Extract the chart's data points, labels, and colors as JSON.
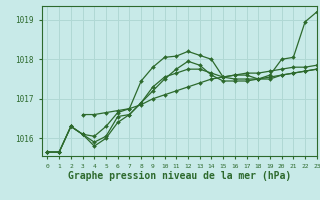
{
  "background_color": "#c8eae8",
  "grid_color": "#b0d8d4",
  "line_color": "#2d6a2d",
  "xlabel": "Graphe pression niveau de la mer (hPa)",
  "xlabel_fontsize": 7,
  "xlim": [
    -0.5,
    23
  ],
  "ylim": [
    1015.55,
    1019.35
  ],
  "yticks": [
    1016,
    1017,
    1018,
    1019
  ],
  "xticks": [
    0,
    1,
    2,
    3,
    4,
    5,
    6,
    7,
    8,
    9,
    10,
    11,
    12,
    13,
    14,
    15,
    16,
    17,
    18,
    19,
    20,
    21,
    22,
    23
  ],
  "lines": [
    {
      "x": [
        0,
        1,
        2,
        3,
        4,
        5,
        6,
        7,
        8,
        9,
        10,
        11,
        12,
        13,
        14,
        15,
        16,
        17,
        18,
        19,
        20,
        21,
        22,
        23
      ],
      "y": [
        1015.65,
        1015.65,
        1016.3,
        1016.1,
        1016.05,
        1016.3,
        1016.65,
        1016.75,
        1017.45,
        1017.8,
        1018.05,
        1018.08,
        1018.2,
        1018.1,
        1018.0,
        1017.55,
        1017.6,
        1017.6,
        1017.5,
        1017.6,
        1018.0,
        1018.05,
        1018.95,
        1019.2
      ]
    },
    {
      "x": [
        3,
        4,
        5,
        6,
        7,
        8,
        9,
        10,
        11,
        12,
        13,
        14,
        15,
        16,
        17,
        18,
        19,
        20,
        21,
        22,
        23
      ],
      "y": [
        1016.6,
        1016.6,
        1016.65,
        1016.7,
        1016.75,
        1016.85,
        1017.0,
        1017.1,
        1017.2,
        1017.3,
        1017.4,
        1017.5,
        1017.55,
        1017.6,
        1017.65,
        1017.65,
        1017.7,
        1017.75,
        1017.8,
        1017.8,
        1017.85
      ]
    },
    {
      "x": [
        0,
        1,
        2,
        3,
        4,
        5,
        6,
        7,
        8,
        9,
        10,
        11,
        12,
        13,
        14,
        15,
        16,
        17,
        18,
        19,
        20,
        21,
        22,
        23
      ],
      "y": [
        1015.65,
        1015.65,
        1016.3,
        1016.1,
        1015.9,
        1016.05,
        1016.55,
        1016.6,
        1016.9,
        1017.2,
        1017.5,
        1017.75,
        1017.95,
        1017.85,
        1017.6,
        1017.45,
        1017.45,
        1017.45,
        1017.5,
        1017.5,
        1017.6,
        1017.65,
        1017.7,
        1017.75
      ]
    },
    {
      "x": [
        0,
        1,
        2,
        3,
        4,
        5,
        6,
        7,
        8,
        9,
        10,
        11,
        12,
        13,
        14,
        15,
        16,
        17,
        18,
        19,
        20,
        21,
        22,
        23
      ],
      "y": [
        1015.65,
        1015.65,
        1016.3,
        1016.1,
        1015.8,
        1016.0,
        1016.4,
        1016.6,
        1016.9,
        1017.3,
        1017.55,
        1017.65,
        1017.75,
        1017.75,
        1017.65,
        1017.55,
        1017.5,
        1017.5,
        1017.5,
        1017.55,
        1017.6,
        1017.65,
        1017.7,
        1017.75
      ]
    }
  ]
}
